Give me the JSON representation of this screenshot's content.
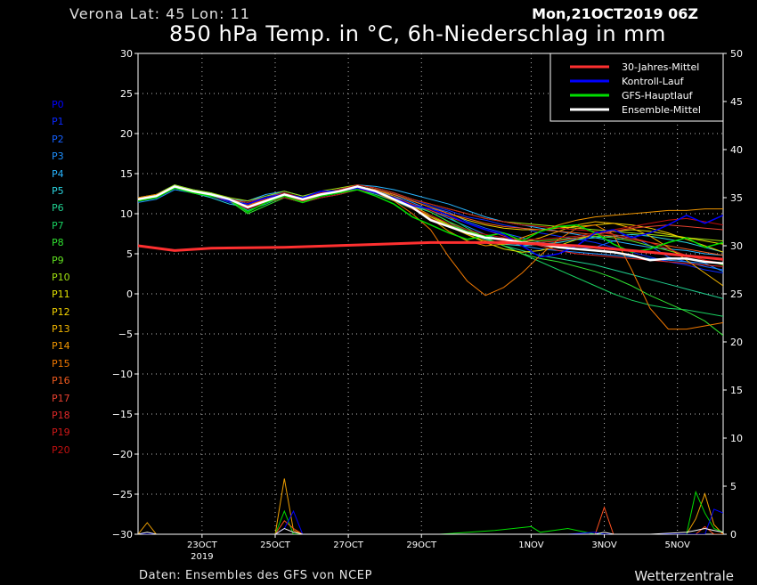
{
  "header": {
    "location": "Verona   Lat: 45 Lon: 11",
    "datetime": "Mon,21OCT2019 06Z",
    "title": "850 hPa Temp. in °C, 6h-Niederschlag in mm"
  },
  "footer": {
    "source": "Daten: Ensembles des GFS von NCEP",
    "brand": "Wetterzentrale"
  },
  "members": [
    {
      "label": "P0",
      "color": "#0000ff"
    },
    {
      "label": "P1",
      "color": "#0a28ff"
    },
    {
      "label": "P2",
      "color": "#1460ff"
    },
    {
      "label": "P3",
      "color": "#1e90ff"
    },
    {
      "label": "P4",
      "color": "#28b4ff"
    },
    {
      "label": "P5",
      "color": "#2ad4e0"
    },
    {
      "label": "P6",
      "color": "#20d090"
    },
    {
      "label": "P7",
      "color": "#18d060"
    },
    {
      "label": "P8",
      "color": "#30e030"
    },
    {
      "label": "P9",
      "color": "#60e020"
    },
    {
      "label": "P10",
      "color": "#a0e010"
    },
    {
      "label": "P11",
      "color": "#e0e000"
    },
    {
      "label": "P12",
      "color": "#f0d000"
    },
    {
      "label": "P13",
      "color": "#f0b400"
    },
    {
      "label": "P14",
      "color": "#f09600"
    },
    {
      "label": "P15",
      "color": "#f07800"
    },
    {
      "label": "P16",
      "color": "#f05a1e"
    },
    {
      "label": "P17",
      "color": "#e84030"
    },
    {
      "label": "P18",
      "color": "#e02828"
    },
    {
      "label": "P19",
      "color": "#d01818"
    },
    {
      "label": "P20",
      "color": "#c01010"
    }
  ],
  "chart_data": {
    "type": "line",
    "title": "850 hPa Temp. in °C, 6h-Niederschlag in mm",
    "x_unit": "hours since 21OCT2019 06Z",
    "x_range": [
      0,
      384
    ],
    "x_ticks": [
      {
        "label": "23OCT",
        "x": 42
      },
      {
        "label": "25OCT",
        "x": 90
      },
      {
        "label": "27OCT",
        "x": 138
      },
      {
        "label": "29OCT",
        "x": 186
      },
      {
        "label": "1NOV",
        "x": 258
      },
      {
        "label": "3NOV",
        "x": 306
      },
      {
        "label": "5NOV",
        "x": 354
      }
    ],
    "x_sublabel": {
      "label": "2019",
      "x": 42
    },
    "y_left": {
      "label": "",
      "ylim": [
        -30,
        30
      ],
      "ticks": [
        30,
        25,
        20,
        15,
        10,
        5,
        0,
        -5,
        -10,
        -15,
        -20,
        -25,
        -30
      ]
    },
    "y_right": {
      "label": "",
      "ylim": [
        0,
        50
      ],
      "ticks": [
        50,
        45,
        40,
        35,
        30,
        25,
        20,
        15,
        10,
        5,
        0
      ]
    },
    "grid": true,
    "legend_position": "top-right",
    "highlight_series": [
      {
        "name": "30-Jahres-Mittel",
        "color": "#ff3030",
        "x": [
          0,
          24,
          48,
          96,
          144,
          192,
          240,
          288,
          336,
          384
        ],
        "y": [
          6.0,
          5.4,
          5.7,
          5.8,
          6.1,
          6.4,
          6.4,
          6.0,
          5.2,
          4.3
        ]
      },
      {
        "name": "Kontroll-Lauf",
        "color": "#0000ff",
        "x": [
          0,
          12,
          24,
          36,
          48,
          60,
          72,
          84,
          96,
          108,
          120,
          132,
          144,
          156,
          168,
          180,
          192,
          204,
          216,
          228,
          240,
          252,
          264,
          276,
          288,
          300,
          312,
          324,
          336,
          348,
          360,
          372,
          384
        ],
        "y": [
          11.8,
          12.2,
          13.4,
          12.8,
          12.4,
          11.6,
          11.2,
          12.0,
          12.4,
          12.0,
          12.8,
          12.8,
          13.2,
          12.6,
          12.0,
          11.0,
          10.6,
          9.8,
          8.8,
          8.0,
          7.4,
          6.0,
          4.6,
          5.0,
          6.0,
          7.6,
          8.0,
          7.0,
          7.6,
          8.6,
          9.8,
          8.8,
          9.8
        ]
      },
      {
        "name": "GFS-Hauptlauf",
        "color": "#00dd00",
        "x": [
          0,
          12,
          24,
          36,
          48,
          60,
          72,
          84,
          96,
          108,
          120,
          132,
          144,
          156,
          168,
          180,
          192,
          204,
          216,
          228,
          240,
          252,
          264,
          276,
          288,
          300,
          312,
          324,
          336,
          348,
          360,
          372,
          384
        ],
        "y": [
          11.6,
          12.0,
          13.2,
          12.6,
          12.2,
          11.8,
          10.2,
          11.4,
          12.2,
          11.4,
          12.2,
          12.6,
          13.0,
          12.2,
          11.2,
          9.6,
          8.6,
          7.6,
          6.8,
          7.2,
          7.6,
          6.6,
          7.8,
          8.4,
          8.6,
          7.6,
          6.2,
          5.2,
          5.6,
          6.4,
          7.0,
          5.8,
          6.4
        ]
      },
      {
        "name": "Ensemble-Mittel",
        "color": "#ffffff",
        "x": [
          0,
          12,
          24,
          36,
          48,
          60,
          72,
          84,
          96,
          108,
          120,
          132,
          144,
          156,
          168,
          180,
          192,
          204,
          216,
          228,
          240,
          252,
          264,
          276,
          288,
          300,
          312,
          324,
          336,
          348,
          360,
          372,
          384
        ],
        "y": [
          11.8,
          12.2,
          13.4,
          12.8,
          12.4,
          11.8,
          10.8,
          11.6,
          12.4,
          11.8,
          12.4,
          12.8,
          13.4,
          12.8,
          11.8,
          10.8,
          9.2,
          8.4,
          7.6,
          7.0,
          6.8,
          6.4,
          6.2,
          5.8,
          5.6,
          5.4,
          5.2,
          4.8,
          4.2,
          4.4,
          4.4,
          4.0,
          3.8
        ]
      }
    ],
    "member_x": [
      0,
      12,
      24,
      36,
      48,
      60,
      72,
      84,
      96,
      108,
      120,
      132,
      144,
      156,
      168,
      180,
      192,
      204,
      216,
      228,
      240,
      252,
      264,
      276,
      288,
      300,
      312,
      324,
      336,
      348,
      360,
      372,
      384
    ],
    "member_series": [
      [
        11.8,
        12.2,
        13.4,
        12.8,
        12.4,
        11.6,
        11.2,
        12.0,
        12.4,
        12.0,
        12.8,
        12.8,
        13.2,
        12.6,
        12.0,
        11.0,
        10.6,
        9.8,
        8.8,
        8.0,
        7.4,
        6.0,
        4.6,
        5.0,
        6.0,
        7.6,
        8.0,
        7.0,
        7.6,
        8.6,
        9.8,
        8.8,
        9.8
      ],
      [
        11.6,
        12.0,
        13.2,
        12.6,
        12.2,
        11.4,
        10.6,
        11.6,
        12.2,
        11.6,
        12.6,
        12.6,
        13.6,
        13.2,
        12.6,
        11.8,
        11.0,
        10.4,
        9.6,
        9.2,
        8.6,
        8.2,
        7.6,
        7.2,
        6.8,
        6.4,
        5.8,
        5.2,
        4.6,
        4.0,
        3.6,
        3.0,
        2.6
      ],
      [
        12.0,
        12.2,
        13.2,
        12.8,
        12.6,
        11.8,
        11.4,
        12.2,
        12.6,
        11.8,
        12.4,
        12.8,
        13.4,
        13.0,
        12.4,
        11.6,
        10.8,
        10.2,
        9.0,
        8.2,
        7.6,
        7.0,
        6.4,
        6.0,
        5.6,
        5.8,
        6.6,
        7.2,
        6.0,
        4.6,
        4.0,
        3.4,
        3.0
      ],
      [
        11.4,
        11.8,
        13.0,
        12.6,
        12.2,
        11.6,
        11.0,
        11.8,
        12.2,
        11.8,
        12.2,
        12.6,
        13.2,
        12.8,
        12.2,
        11.4,
        10.4,
        9.4,
        8.4,
        7.4,
        6.6,
        6.0,
        5.6,
        5.4,
        5.2,
        5.0,
        4.8,
        4.6,
        4.4,
        4.2,
        4.0,
        3.8,
        2.8
      ],
      [
        11.8,
        12.4,
        13.6,
        13.0,
        12.6,
        11.8,
        11.6,
        12.4,
        12.8,
        12.2,
        12.6,
        13.0,
        13.6,
        13.4,
        13.0,
        12.4,
        11.8,
        11.2,
        10.4,
        9.6,
        9.0,
        8.6,
        8.2,
        7.8,
        7.4,
        7.0,
        6.6,
        6.2,
        5.8,
        5.6,
        5.4,
        5.0,
        4.8
      ],
      [
        11.6,
        12.0,
        13.2,
        12.6,
        12.0,
        11.2,
        10.8,
        11.6,
        12.0,
        11.4,
        12.0,
        12.4,
        13.0,
        12.6,
        11.8,
        11.0,
        10.2,
        9.0,
        7.6,
        6.8,
        6.2,
        6.0,
        6.2,
        6.4,
        6.8,
        7.0,
        7.2,
        7.4,
        7.2,
        6.8,
        6.4,
        5.8,
        5.2
      ],
      [
        11.8,
        12.2,
        13.4,
        12.8,
        12.4,
        11.6,
        10.4,
        11.2,
        12.2,
        11.6,
        12.2,
        12.6,
        13.0,
        12.4,
        11.6,
        10.6,
        9.8,
        8.8,
        7.8,
        6.8,
        6.0,
        5.4,
        4.8,
        4.4,
        4.0,
        3.6,
        3.0,
        2.4,
        1.8,
        1.2,
        0.6,
        0.0,
        -0.6
      ],
      [
        12.0,
        12.4,
        13.4,
        12.8,
        12.4,
        11.8,
        11.2,
        11.8,
        12.4,
        11.8,
        12.4,
        12.8,
        13.4,
        13.0,
        12.4,
        11.6,
        10.8,
        9.6,
        8.2,
        7.0,
        6.0,
        5.0,
        4.0,
        3.0,
        2.0,
        1.0,
        0.0,
        -0.8,
        -1.4,
        -1.8,
        -2.0,
        -2.4,
        -2.8
      ],
      [
        11.6,
        12.0,
        13.2,
        12.6,
        12.2,
        11.6,
        10.0,
        11.0,
        12.0,
        11.4,
        12.2,
        12.6,
        13.2,
        12.8,
        12.0,
        11.2,
        10.2,
        9.0,
        8.0,
        7.0,
        6.0,
        5.0,
        4.4,
        4.0,
        3.4,
        2.8,
        2.0,
        1.0,
        -0.2,
        -1.2,
        -2.2,
        -3.4,
        -5.2
      ],
      [
        11.8,
        12.2,
        13.4,
        12.8,
        12.4,
        11.8,
        11.0,
        11.8,
        12.4,
        11.8,
        12.4,
        12.8,
        13.2,
        12.6,
        11.8,
        10.8,
        9.6,
        8.6,
        7.8,
        7.2,
        6.8,
        6.6,
        6.6,
        6.8,
        7.0,
        7.2,
        7.0,
        6.6,
        6.0,
        5.4,
        4.8,
        4.2,
        3.6
      ],
      [
        12.0,
        12.4,
        13.6,
        13.0,
        12.6,
        12.0,
        11.6,
        12.2,
        12.8,
        12.2,
        12.8,
        13.2,
        13.6,
        13.2,
        12.6,
        11.8,
        11.2,
        10.6,
        10.0,
        9.4,
        9.0,
        8.8,
        8.6,
        8.4,
        8.2,
        8.0,
        7.8,
        7.6,
        7.4,
        7.2,
        7.0,
        6.8,
        6.6
      ],
      [
        11.6,
        12.0,
        13.2,
        12.6,
        12.2,
        11.6,
        11.0,
        11.6,
        12.2,
        11.6,
        12.2,
        12.6,
        13.2,
        12.8,
        12.0,
        11.0,
        9.8,
        8.6,
        7.4,
        6.4,
        5.6,
        5.2,
        5.4,
        6.0,
        6.8,
        7.4,
        7.8,
        8.0,
        7.8,
        7.4,
        7.0,
        6.6,
        6.2
      ],
      [
        11.8,
        12.2,
        13.4,
        12.8,
        12.4,
        11.8,
        11.2,
        11.8,
        12.4,
        11.8,
        12.4,
        12.8,
        13.4,
        13.0,
        12.4,
        11.6,
        10.8,
        10.0,
        9.2,
        8.6,
        8.2,
        8.0,
        8.0,
        8.2,
        8.4,
        8.6,
        8.8,
        8.6,
        8.2,
        7.6,
        6.8,
        6.0,
        5.2
      ],
      [
        11.6,
        12.0,
        13.2,
        12.6,
        12.2,
        11.6,
        11.0,
        11.6,
        12.2,
        11.6,
        12.2,
        12.6,
        13.0,
        12.6,
        11.8,
        10.8,
        9.6,
        8.4,
        7.4,
        6.6,
        6.2,
        6.4,
        7.0,
        7.8,
        8.6,
        9.0,
        8.8,
        8.2,
        7.2,
        5.8,
        4.2,
        2.6,
        1.0
      ],
      [
        11.8,
        12.2,
        13.4,
        12.8,
        12.4,
        11.8,
        11.0,
        11.8,
        12.4,
        11.8,
        12.4,
        12.8,
        13.4,
        13.0,
        12.2,
        11.0,
        9.4,
        7.8,
        6.6,
        6.0,
        6.2,
        7.0,
        7.8,
        8.6,
        9.2,
        9.6,
        9.8,
        10.0,
        10.2,
        10.4,
        10.4,
        10.6,
        10.6
      ],
      [
        12.0,
        12.4,
        13.4,
        12.8,
        12.4,
        11.6,
        10.8,
        11.6,
        12.2,
        11.6,
        12.2,
        12.6,
        13.2,
        12.6,
        11.6,
        10.0,
        8.0,
        4.6,
        1.6,
        -0.2,
        0.8,
        2.6,
        4.8,
        6.8,
        8.2,
        8.6,
        7.4,
        3.0,
        -1.8,
        -4.4,
        -4.4,
        -4.0,
        -3.6
      ],
      [
        11.6,
        12.0,
        13.2,
        12.6,
        12.2,
        11.6,
        11.2,
        11.8,
        12.4,
        11.8,
        12.4,
        12.8,
        13.4,
        13.0,
        12.4,
        11.6,
        10.8,
        10.0,
        9.4,
        8.8,
        8.4,
        8.2,
        8.0,
        7.8,
        7.6,
        7.4,
        7.2,
        6.8,
        6.4,
        6.0,
        5.6,
        5.2,
        4.8
      ],
      [
        11.8,
        12.2,
        13.2,
        12.6,
        12.2,
        11.6,
        11.0,
        11.6,
        12.2,
        11.6,
        12.2,
        12.6,
        13.0,
        12.6,
        11.8,
        10.6,
        9.4,
        8.4,
        7.6,
        7.0,
        6.6,
        6.4,
        6.4,
        6.6,
        7.0,
        7.4,
        7.8,
        8.2,
        8.4,
        8.6,
        8.4,
        8.2,
        8.0
      ],
      [
        11.6,
        12.0,
        13.2,
        12.6,
        12.2,
        11.6,
        11.2,
        11.8,
        12.2,
        11.6,
        12.4,
        12.8,
        13.2,
        12.8,
        12.0,
        11.2,
        10.4,
        9.6,
        8.8,
        8.0,
        7.2,
        6.6,
        6.0,
        5.4,
        5.0,
        4.8,
        4.6,
        4.4,
        4.2,
        4.0,
        3.8,
        3.6,
        3.4
      ],
      [
        11.8,
        12.2,
        13.4,
        12.8,
        12.4,
        11.8,
        11.4,
        12.0,
        12.6,
        12.0,
        12.6,
        13.0,
        13.6,
        13.2,
        12.6,
        11.8,
        11.2,
        10.6,
        10.0,
        9.4,
        9.0,
        8.6,
        8.4,
        8.2,
        8.0,
        7.8,
        7.4,
        7.0,
        6.4,
        5.6,
        4.8,
        4.2,
        3.8
      ],
      [
        11.6,
        12.0,
        13.2,
        12.6,
        12.2,
        11.6,
        10.6,
        11.4,
        12.0,
        11.4,
        12.0,
        12.4,
        13.0,
        12.6,
        11.8,
        10.8,
        9.8,
        8.8,
        8.0,
        7.4,
        7.0,
        6.8,
        6.8,
        7.0,
        7.2,
        7.6,
        8.0,
        8.4,
        8.8,
        9.2,
        9.4,
        9.0,
        8.6
      ]
    ],
    "precip_x": [
      0,
      6,
      12,
      42,
      48,
      54,
      60,
      66,
      90,
      96,
      102,
      108,
      114,
      198,
      234,
      258,
      264,
      282,
      300,
      306,
      312,
      336,
      360,
      366,
      372,
      378,
      384
    ],
    "precip_series": [
      {
        "color": "#f0a000",
        "mm": [
          0,
          1.2,
          0,
          0,
          0,
          0,
          0,
          0,
          0,
          5.8,
          0.4,
          0,
          0,
          0,
          0,
          0,
          0,
          0,
          0,
          0,
          0,
          0,
          0,
          1.6,
          4.2,
          1.0,
          0
        ]
      },
      {
        "color": "#00dd00",
        "mm": [
          0,
          0,
          0,
          0,
          0,
          0,
          0,
          0,
          0,
          2.4,
          0,
          0,
          0,
          0,
          0.4,
          0.8,
          0.2,
          0.6,
          0,
          0,
          0,
          0,
          0,
          4.4,
          2.2,
          0.6,
          0.2
        ]
      },
      {
        "color": "#ff5020",
        "mm": [
          0,
          0,
          0,
          0,
          0,
          0,
          0,
          0,
          0,
          1.4,
          0.6,
          0,
          0,
          0,
          0,
          0,
          0,
          0,
          0,
          2.8,
          0,
          0,
          0,
          0,
          0.8,
          0,
          0
        ]
      },
      {
        "color": "#0000ff",
        "mm": [
          0,
          0,
          0,
          0,
          0,
          0,
          0,
          0,
          0,
          0.6,
          2.4,
          0,
          0,
          0,
          0,
          0,
          0,
          0,
          0.2,
          0,
          0,
          0,
          0,
          0,
          0,
          2.6,
          2.2
        ]
      },
      {
        "color": "#ffffff",
        "mm": [
          0,
          0.2,
          0,
          0,
          0,
          0,
          0,
          0,
          0,
          0.6,
          0.2,
          0,
          0,
          0,
          0,
          0,
          0,
          0,
          0,
          0.2,
          0,
          0,
          0.2,
          0.4,
          0.6,
          0.4,
          0.2
        ]
      }
    ],
    "legend": [
      {
        "name": "30-Jahres-Mittel",
        "color": "#ff3030"
      },
      {
        "name": "Kontroll-Lauf",
        "color": "#0000ff"
      },
      {
        "name": "GFS-Hauptlauf",
        "color": "#00dd00"
      },
      {
        "name": "Ensemble-Mittel",
        "color": "#ffffff"
      }
    ]
  }
}
